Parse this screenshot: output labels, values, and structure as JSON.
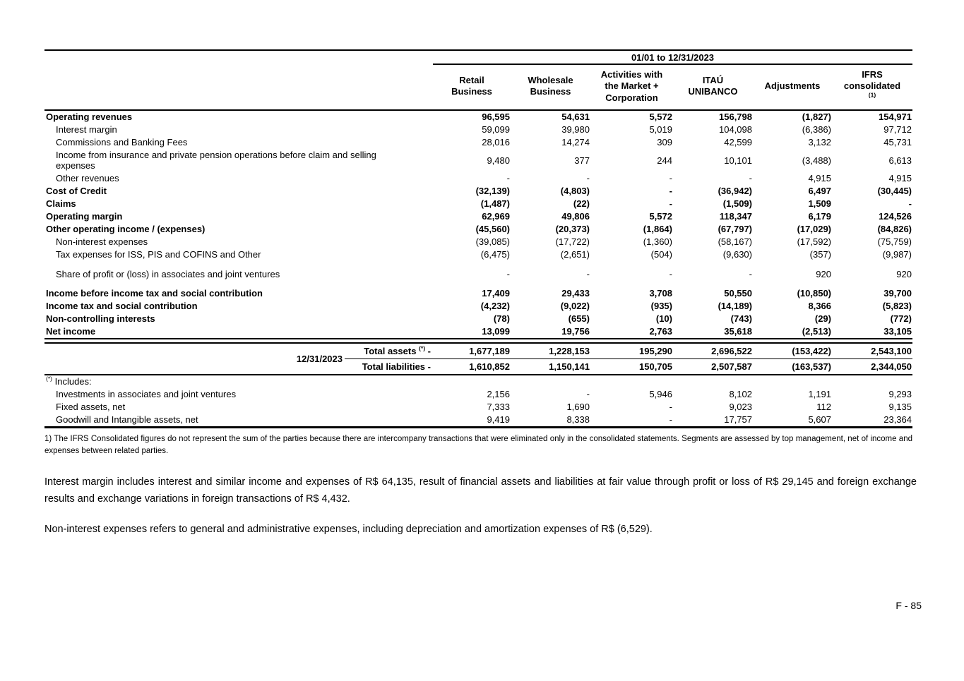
{
  "report": {
    "period_header": "01/01 to 12/31/2023",
    "columns": [
      {
        "label": "Retail Business",
        "superscript": ""
      },
      {
        "label": "Wholesale Business",
        "superscript": ""
      },
      {
        "label": "Activities with the Market + Corporation",
        "superscript": ""
      },
      {
        "label": "ITAÚ UNIBANCO",
        "superscript": ""
      },
      {
        "label": "Adjustments",
        "superscript": ""
      },
      {
        "label": "IFRS consolidated",
        "superscript": "(1)"
      }
    ],
    "rows": [
      {
        "label": "Operating revenues",
        "bold": true,
        "indent": false,
        "values": [
          "96,595",
          "54,631",
          "5,572",
          "156,798",
          "(1,827)",
          "154,971"
        ]
      },
      {
        "label": "Interest margin",
        "bold": false,
        "indent": true,
        "values": [
          "59,099",
          "39,980",
          "5,019",
          "104,098",
          "(6,386)",
          "97,712"
        ]
      },
      {
        "label": "Commissions and Banking Fees",
        "bold": false,
        "indent": true,
        "values": [
          "28,016",
          "14,274",
          "309",
          "42,599",
          "3,132",
          "45,731"
        ]
      },
      {
        "label": "Income from insurance and private pension operations before claim and selling expenses",
        "bold": false,
        "indent": true,
        "wrap": true,
        "values": [
          "9,480",
          "377",
          "244",
          "10,101",
          "(3,488)",
          "6,613"
        ]
      },
      {
        "label": "Other revenues",
        "bold": false,
        "indent": true,
        "values": [
          "-",
          "-",
          "-",
          "-",
          "4,915",
          "4,915"
        ]
      },
      {
        "label": "Cost of Credit",
        "bold": true,
        "indent": false,
        "values": [
          "(32,139)",
          "(4,803)",
          "-",
          "(36,942)",
          "6,497",
          "(30,445)"
        ]
      },
      {
        "label": "Claims",
        "bold": true,
        "indent": false,
        "values": [
          "(1,487)",
          "(22)",
          "-",
          "(1,509)",
          "1,509",
          "-"
        ]
      },
      {
        "label": "Operating margin",
        "bold": true,
        "indent": false,
        "values": [
          "62,969",
          "49,806",
          "5,572",
          "118,347",
          "6,179",
          "124,526"
        ]
      },
      {
        "label": "Other operating income / (expenses)",
        "bold": true,
        "indent": false,
        "values": [
          "(45,560)",
          "(20,373)",
          "(1,864)",
          "(67,797)",
          "(17,029)",
          "(84,826)"
        ]
      },
      {
        "label": "Non-interest expenses",
        "bold": false,
        "indent": true,
        "values": [
          "(39,085)",
          "(17,722)",
          "(1,360)",
          "(58,167)",
          "(17,592)",
          "(75,759)"
        ]
      },
      {
        "label": "Tax expenses for ISS, PIS and COFINS and Other",
        "bold": false,
        "indent": true,
        "values": [
          "(6,475)",
          "(2,651)",
          "(504)",
          "(9,630)",
          "(357)",
          "(9,987)"
        ]
      },
      {
        "label": "Share of profit or (loss) in associates and joint ventures",
        "bold": false,
        "indent": true,
        "gap_before": true,
        "values": [
          "-",
          "-",
          "-",
          "-",
          "920",
          "920"
        ]
      },
      {
        "label": "Income before income tax and social contribution",
        "bold": true,
        "indent": false,
        "gap_before": true,
        "values": [
          "17,409",
          "29,433",
          "3,708",
          "50,550",
          "(10,850)",
          "39,700"
        ]
      },
      {
        "label": "Income tax and social contribution",
        "bold": true,
        "indent": false,
        "values": [
          "(4,232)",
          "(9,022)",
          "(935)",
          "(14,189)",
          "8,366",
          "(5,823)"
        ]
      },
      {
        "label": "Non-controlling interests",
        "bold": true,
        "indent": false,
        "values": [
          "(78)",
          "(655)",
          "(10)",
          "(743)",
          "(29)",
          "(772)"
        ]
      },
      {
        "label": "Net income",
        "bold": true,
        "indent": false,
        "values": [
          "13,099",
          "19,756",
          "2,763",
          "35,618",
          "(2,513)",
          "33,105"
        ]
      }
    ],
    "totals": {
      "date_label": "12/31/2023",
      "rows": [
        {
          "label": "Total assets",
          "superscript": "(*)",
          "suffix": "-",
          "values": [
            "1,677,189",
            "1,228,153",
            "195,290",
            "2,696,522",
            "(153,422)",
            "2,543,100"
          ]
        },
        {
          "label": "Total liabilities",
          "superscript": "",
          "suffix": "-",
          "values": [
            "1,610,852",
            "1,150,141",
            "150,705",
            "2,507,587",
            "(163,537)",
            "2,344,050"
          ]
        }
      ]
    },
    "includes": {
      "marker": "(*)",
      "label": "Includes:",
      "rows": [
        {
          "label": "Investments in associates and joint ventures",
          "values": [
            "2,156",
            "-",
            "5,946",
            "8,102",
            "1,191",
            "9,293"
          ]
        },
        {
          "label": "Fixed assets, net",
          "values": [
            "7,333",
            "1,690",
            "-",
            "9,023",
            "112",
            "9,135"
          ]
        },
        {
          "label": "Goodwill and Intangible assets, net",
          "values": [
            "9,419",
            "8,338",
            "-",
            "17,757",
            "5,607",
            "23,364"
          ]
        }
      ]
    },
    "footnote": "1) The IFRS Consolidated figures do not represent the sum of the parties because there are intercompany transactions that were eliminated only in the consolidated statements. Segments are assessed by top management, net of income and expenses between related parties.",
    "paragraphs": [
      "Interest margin includes interest and similar income and expenses of R$ 64,135, result of financial assets and liabilities at fair value through profit or loss of R$ 29,145 and foreign exchange results and exchange variations in foreign transactions of R$ 4,432.",
      "Non-interest expenses refers to general and administrative expenses, including depreciation and amortization expenses of R$ (6,529)."
    ],
    "page_number": "F - 85"
  }
}
